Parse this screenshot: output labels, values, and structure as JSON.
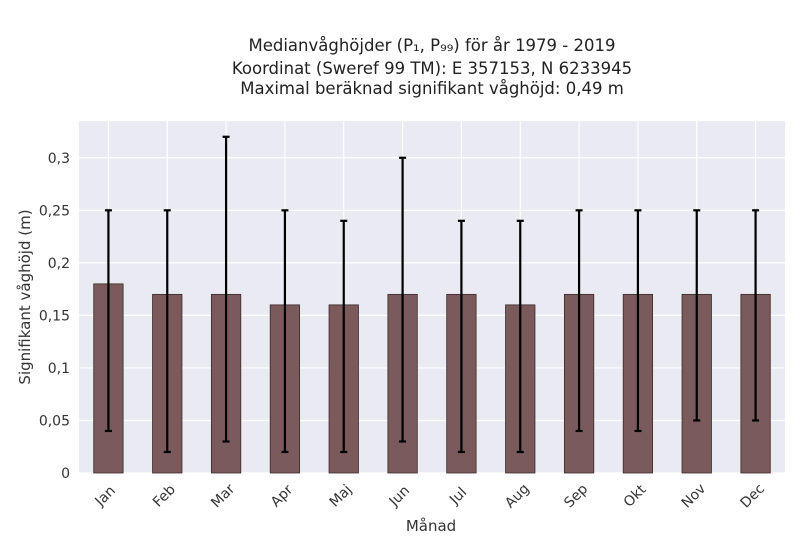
{
  "chart_data": {
    "type": "bar",
    "title_lines": [
      "Medianvåghöjder (P₁, P₉₉) för år 1979 - 2019",
      "Koordinat (Sweref 99 TM): E 357153, N 6233945",
      "Maximal beräknad signifikant våghöjd: 0,49 m"
    ],
    "xlabel": "Månad",
    "ylabel": "Signifikant våghöjd (m)",
    "categories": [
      "Jan",
      "Feb",
      "Mar",
      "Apr",
      "Maj",
      "Jun",
      "Jul",
      "Aug",
      "Sep",
      "Okt",
      "Nov",
      "Dec"
    ],
    "values": [
      0.18,
      0.17,
      0.17,
      0.16,
      0.16,
      0.17,
      0.17,
      0.16,
      0.17,
      0.17,
      0.17,
      0.17
    ],
    "error_low": [
      0.04,
      0.02,
      0.03,
      0.02,
      0.02,
      0.03,
      0.02,
      0.02,
      0.04,
      0.04,
      0.05,
      0.05
    ],
    "error_high": [
      0.25,
      0.25,
      0.32,
      0.25,
      0.24,
      0.3,
      0.24,
      0.24,
      0.25,
      0.25,
      0.25,
      0.25
    ],
    "ylim": [
      0,
      0.335
    ],
    "yticks": [
      0,
      0.05,
      0.1,
      0.15,
      0.2,
      0.25,
      0.3
    ],
    "ytick_labels": [
      "0",
      "0,05",
      "0,1",
      "0,15",
      "0,2",
      "0,25",
      "0,3"
    ],
    "grid": true,
    "colors": {
      "bar": "#7a5a5a",
      "bar_edge": "#3a2a2a",
      "error": "#000000",
      "plot_background": "#eaeaf2",
      "grid": "#ffffff"
    }
  }
}
